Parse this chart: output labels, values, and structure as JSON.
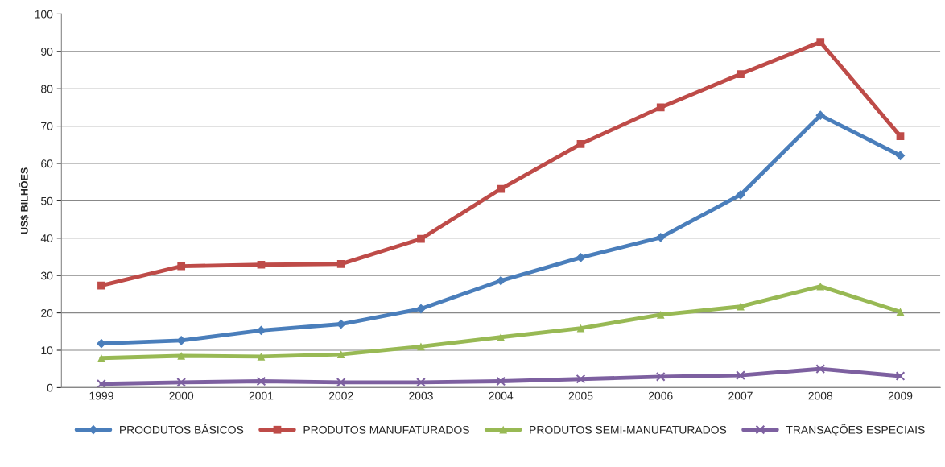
{
  "chart_data": {
    "type": "line",
    "ylabel": "US$ BILHÕES",
    "categories": [
      "1999",
      "2000",
      "2001",
      "2002",
      "2003",
      "2004",
      "2005",
      "2006",
      "2007",
      "2008",
      "2009"
    ],
    "ylim": [
      0,
      100
    ],
    "yticks": [
      0,
      10,
      20,
      30,
      40,
      50,
      60,
      70,
      80,
      90,
      100
    ],
    "grid": "y",
    "legend": "bottom",
    "series": [
      {
        "name": "PROODUTOS BÁSICOS",
        "color": "#4a7ebb",
        "marker": "diamond",
        "values": [
          11.8,
          12.6,
          15.3,
          17.0,
          21.1,
          28.6,
          34.8,
          40.2,
          51.6,
          72.9,
          62.1
        ]
      },
      {
        "name": "PRODUTOS MANUFATURADOS",
        "color": "#be4b48",
        "marker": "square",
        "values": [
          27.3,
          32.5,
          32.9,
          33.1,
          39.8,
          53.2,
          65.2,
          75.0,
          83.9,
          92.5,
          67.3
        ]
      },
      {
        "name": "PRODUTOS SEMI-MANUFATURADOS",
        "color": "#98b954",
        "marker": "triangle",
        "values": [
          7.9,
          8.5,
          8.3,
          8.9,
          11.0,
          13.5,
          15.9,
          19.5,
          21.7,
          27.1,
          20.3
        ]
      },
      {
        "name": "TRANSAÇÕES ESPECIAIS",
        "color": "#7d60a0",
        "marker": "cross",
        "values": [
          1.0,
          1.4,
          1.7,
          1.4,
          1.4,
          1.7,
          2.3,
          2.9,
          3.3,
          5.0,
          3.1
        ]
      }
    ]
  }
}
